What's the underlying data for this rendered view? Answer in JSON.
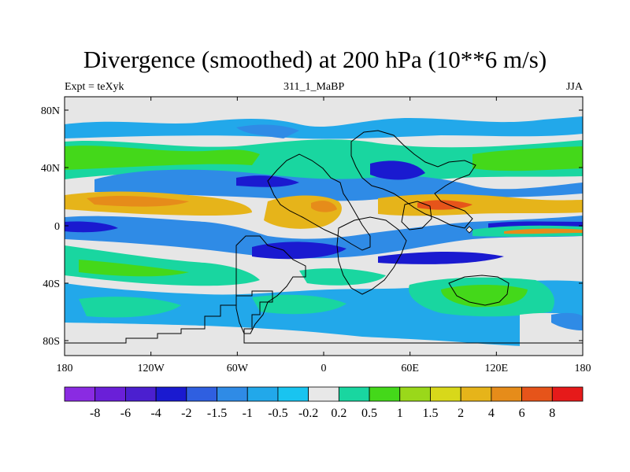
{
  "title": "Divergence (smoothed) at 200 hPa (10**6 m/s)",
  "subtitle_left": "Expt = teXyk",
  "subtitle_center": "311_1_MaBP",
  "subtitle_right": "JJA",
  "map": {
    "lat_ticks": [
      "80N",
      "40N",
      "0",
      "40S",
      "80S"
    ],
    "lon_ticks": [
      "180",
      "120W",
      "60W",
      "0",
      "60E",
      "120E",
      "180"
    ],
    "background_color": "#e6e6e6"
  },
  "colorbar": {
    "colors": [
      "#8a2be2",
      "#6a1fd8",
      "#4b1fcf",
      "#1a1ad0",
      "#2f5fe0",
      "#2f8be6",
      "#22a8ea",
      "#19c4f0",
      "#e8e8e8",
      "#19d6a0",
      "#44d81a",
      "#9ad81a",
      "#d8d81a",
      "#e6b41a",
      "#e68c1a",
      "#e6541a",
      "#e61a1a"
    ],
    "labels": [
      "-8",
      "-6",
      "-4",
      "-2",
      "-1.5",
      "-1",
      "-0.5",
      "-0.2",
      "0.2",
      "0.5",
      "1",
      "1.5",
      "2",
      "4",
      "6",
      "8"
    ]
  }
}
